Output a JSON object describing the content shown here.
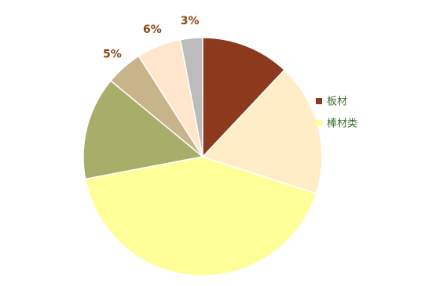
{
  "chart_data": {
    "type": "pie",
    "slices": [
      {
        "label": "",
        "value": 3,
        "color": "#bcbcbc",
        "label_text": "3%"
      },
      {
        "label": "",
        "value": 6,
        "color": "#ffe6cc",
        "label_text": "6%"
      },
      {
        "label": "",
        "value": 5,
        "color": "#c8b48a",
        "label_text": "5%"
      },
      {
        "label": "",
        "value": 14,
        "color": "#a8ad6a",
        "label_text": ""
      },
      {
        "label": "",
        "value": 42,
        "color": "#ffff99",
        "label_text": ""
      },
      {
        "label": "",
        "value": 18,
        "color": "#ffedc8",
        "label_text": ""
      },
      {
        "label": "",
        "value": 12,
        "color": "#8b3a1e",
        "label_text": ""
      }
    ],
    "legend": {
      "position": "right",
      "entries": [
        {
          "label": "板材",
          "color": "#8b3a1e"
        },
        {
          "label": "棒材类",
          "color": "#ffff99"
        }
      ]
    },
    "title": "",
    "label_color": "#8b4513"
  }
}
